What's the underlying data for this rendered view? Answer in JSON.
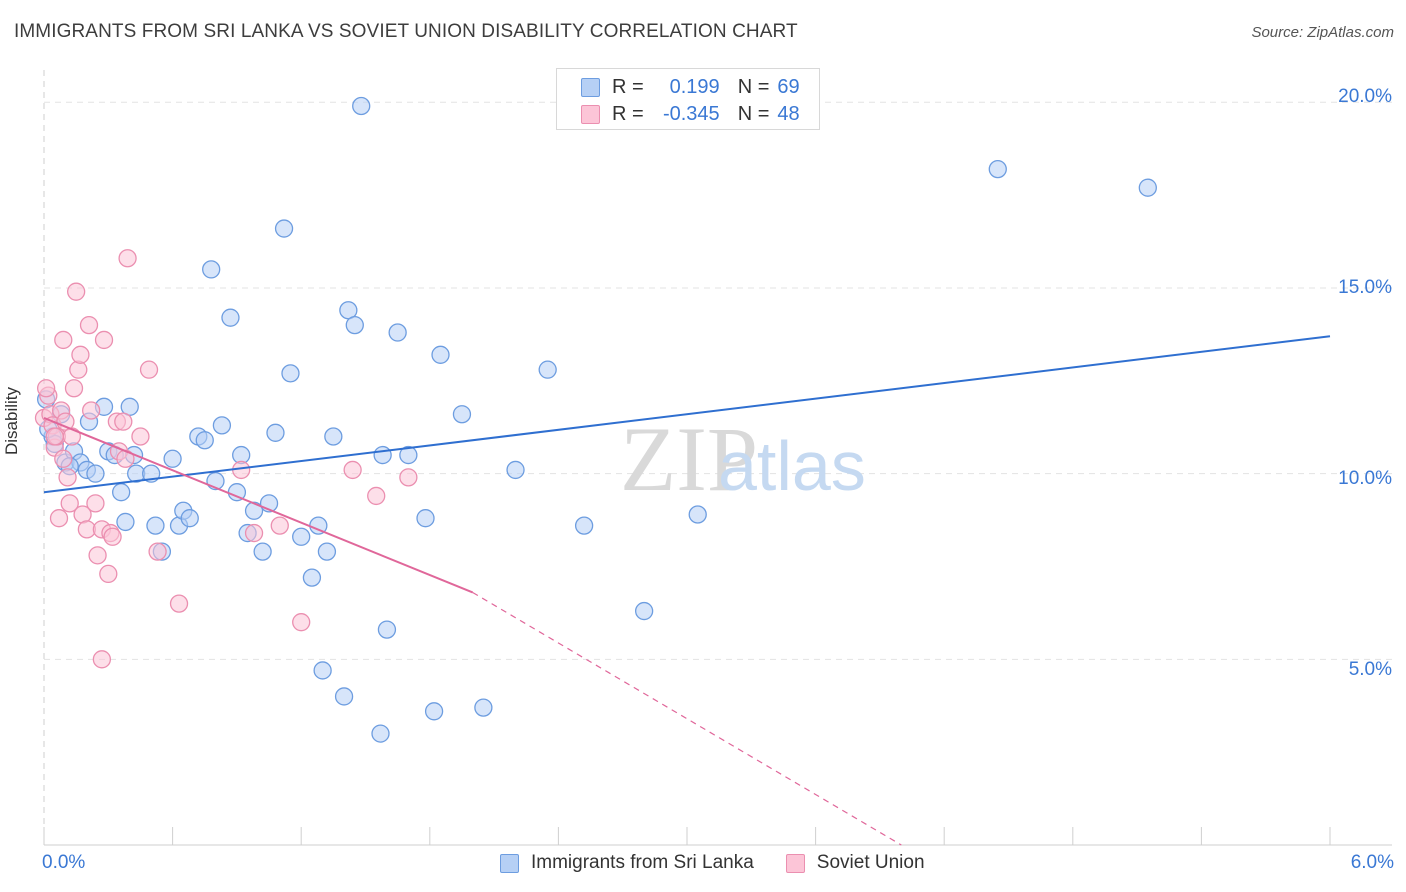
{
  "header": {
    "title": "IMMIGRANTS FROM SRI LANKA VS SOVIET UNION DISABILITY CORRELATION CHART",
    "source": "Source: ZipAtlas.com"
  },
  "legend_top": {
    "rows": [
      {
        "r_label": "R =",
        "r_value": "0.199",
        "n_label": "N =",
        "n_value": "69"
      },
      {
        "r_label": "R =",
        "r_value": "-0.345",
        "n_label": "N =",
        "n_value": "48"
      }
    ]
  },
  "legend_bottom": {
    "items": [
      "Immigrants from Sri Lanka",
      "Soviet Union"
    ]
  },
  "axes": {
    "ylabel": "Disability",
    "y_ticks": [
      "5.0%",
      "10.0%",
      "15.0%",
      "20.0%"
    ],
    "x_left": "0.0%",
    "x_right": "6.0%"
  },
  "colors": {
    "blue_fill": "#b6d0f5",
    "blue_stroke": "#6d9de0",
    "blue_line": "#2f6fd0",
    "pink_fill": "#fcc5d7",
    "pink_stroke": "#eb8fb0",
    "pink_line": "#e0679a",
    "grid": "#e3e3e3",
    "tick_text": "#3a78d4"
  },
  "chart_data": {
    "type": "scatter",
    "title": "IMMIGRANTS FROM SRI LANKA VS SOVIET UNION DISABILITY CORRELATION CHART",
    "xlabel": "",
    "ylabel": "Disability",
    "xlim": [
      0,
      6
    ],
    "ylim": [
      0,
      21
    ],
    "grid": true,
    "legend_placement": "bottom-center",
    "series": [
      {
        "name": "Immigrants from Sri Lanka",
        "color": "#6d9de0",
        "trend": {
          "x": [
            0,
            6
          ],
          "y": [
            9.5,
            13.7
          ],
          "dashed_from": null
        },
        "points": [
          [
            0.01,
            12.0
          ],
          [
            0.04,
            11.0
          ],
          [
            0.05,
            10.8
          ],
          [
            0.1,
            10.3
          ],
          [
            0.14,
            10.6
          ],
          [
            0.17,
            10.3
          ],
          [
            0.2,
            10.1
          ],
          [
            0.21,
            11.4
          ],
          [
            0.24,
            10.0
          ],
          [
            0.28,
            11.8
          ],
          [
            0.3,
            10.6
          ],
          [
            0.33,
            10.5
          ],
          [
            0.36,
            9.5
          ],
          [
            0.38,
            8.7
          ],
          [
            0.4,
            11.8
          ],
          [
            0.42,
            10.5
          ],
          [
            0.43,
            10.0
          ],
          [
            0.5,
            10.0
          ],
          [
            0.52,
            8.6
          ],
          [
            0.55,
            7.9
          ],
          [
            0.6,
            10.4
          ],
          [
            0.63,
            8.6
          ],
          [
            0.65,
            9.0
          ],
          [
            0.68,
            8.8
          ],
          [
            0.72,
            11.0
          ],
          [
            0.75,
            10.9
          ],
          [
            0.78,
            15.5
          ],
          [
            0.8,
            9.8
          ],
          [
            0.83,
            11.3
          ],
          [
            0.87,
            14.2
          ],
          [
            0.9,
            9.5
          ],
          [
            0.92,
            10.5
          ],
          [
            0.95,
            8.4
          ],
          [
            0.98,
            9.0
          ],
          [
            1.02,
            7.9
          ],
          [
            1.05,
            9.2
          ],
          [
            1.08,
            11.1
          ],
          [
            1.12,
            16.6
          ],
          [
            1.15,
            12.7
          ],
          [
            1.2,
            8.3
          ],
          [
            1.25,
            7.2
          ],
          [
            1.28,
            8.6
          ],
          [
            1.32,
            7.9
          ],
          [
            1.35,
            11.0
          ],
          [
            1.42,
            14.4
          ],
          [
            1.45,
            14.0
          ],
          [
            1.58,
            10.5
          ],
          [
            1.6,
            5.8
          ],
          [
            1.65,
            13.8
          ],
          [
            1.7,
            10.5
          ],
          [
            1.78,
            8.8
          ],
          [
            1.85,
            13.2
          ],
          [
            1.95,
            11.6
          ],
          [
            2.2,
            10.1
          ],
          [
            2.35,
            12.8
          ],
          [
            2.52,
            8.6
          ],
          [
            2.8,
            6.3
          ],
          [
            3.05,
            8.9
          ],
          [
            4.45,
            18.2
          ],
          [
            5.15,
            17.7
          ],
          [
            1.48,
            19.9
          ],
          [
            1.3,
            4.7
          ],
          [
            1.4,
            4.0
          ],
          [
            1.57,
            3.0
          ],
          [
            1.82,
            3.6
          ],
          [
            2.05,
            3.7
          ],
          [
            0.08,
            11.6
          ],
          [
            0.12,
            10.2
          ],
          [
            0.02,
            11.2
          ]
        ]
      },
      {
        "name": "Soviet Union",
        "color": "#eb8fb0",
        "trend": {
          "x": [
            0,
            2.0,
            4.0
          ],
          "y": [
            11.5,
            6.8,
            0.0
          ],
          "dashed_from": 2.0
        },
        "points": [
          [
            0.0,
            11.5
          ],
          [
            0.02,
            12.1
          ],
          [
            0.03,
            11.6
          ],
          [
            0.04,
            11.3
          ],
          [
            0.05,
            10.7
          ],
          [
            0.06,
            11.0
          ],
          [
            0.07,
            8.8
          ],
          [
            0.08,
            11.7
          ],
          [
            0.09,
            13.6
          ],
          [
            0.1,
            11.4
          ],
          [
            0.11,
            9.9
          ],
          [
            0.12,
            9.2
          ],
          [
            0.13,
            11.0
          ],
          [
            0.14,
            12.3
          ],
          [
            0.15,
            14.9
          ],
          [
            0.16,
            12.8
          ],
          [
            0.17,
            13.2
          ],
          [
            0.18,
            8.9
          ],
          [
            0.2,
            8.5
          ],
          [
            0.21,
            14.0
          ],
          [
            0.22,
            11.7
          ],
          [
            0.24,
            9.2
          ],
          [
            0.25,
            7.8
          ],
          [
            0.27,
            8.5
          ],
          [
            0.28,
            13.6
          ],
          [
            0.3,
            7.3
          ],
          [
            0.31,
            8.4
          ],
          [
            0.32,
            8.3
          ],
          [
            0.34,
            11.4
          ],
          [
            0.35,
            10.6
          ],
          [
            0.37,
            11.4
          ],
          [
            0.38,
            10.4
          ],
          [
            0.39,
            15.8
          ],
          [
            0.45,
            11.0
          ],
          [
            0.49,
            12.8
          ],
          [
            0.53,
            7.9
          ],
          [
            0.63,
            6.5
          ],
          [
            0.92,
            10.1
          ],
          [
            0.98,
            8.4
          ],
          [
            1.1,
            8.6
          ],
          [
            1.2,
            6.0
          ],
          [
            1.44,
            10.1
          ],
          [
            1.55,
            9.4
          ],
          [
            1.7,
            9.9
          ],
          [
            0.27,
            5.0
          ],
          [
            0.05,
            11.0
          ],
          [
            0.01,
            12.3
          ],
          [
            0.09,
            10.4
          ]
        ]
      }
    ]
  }
}
